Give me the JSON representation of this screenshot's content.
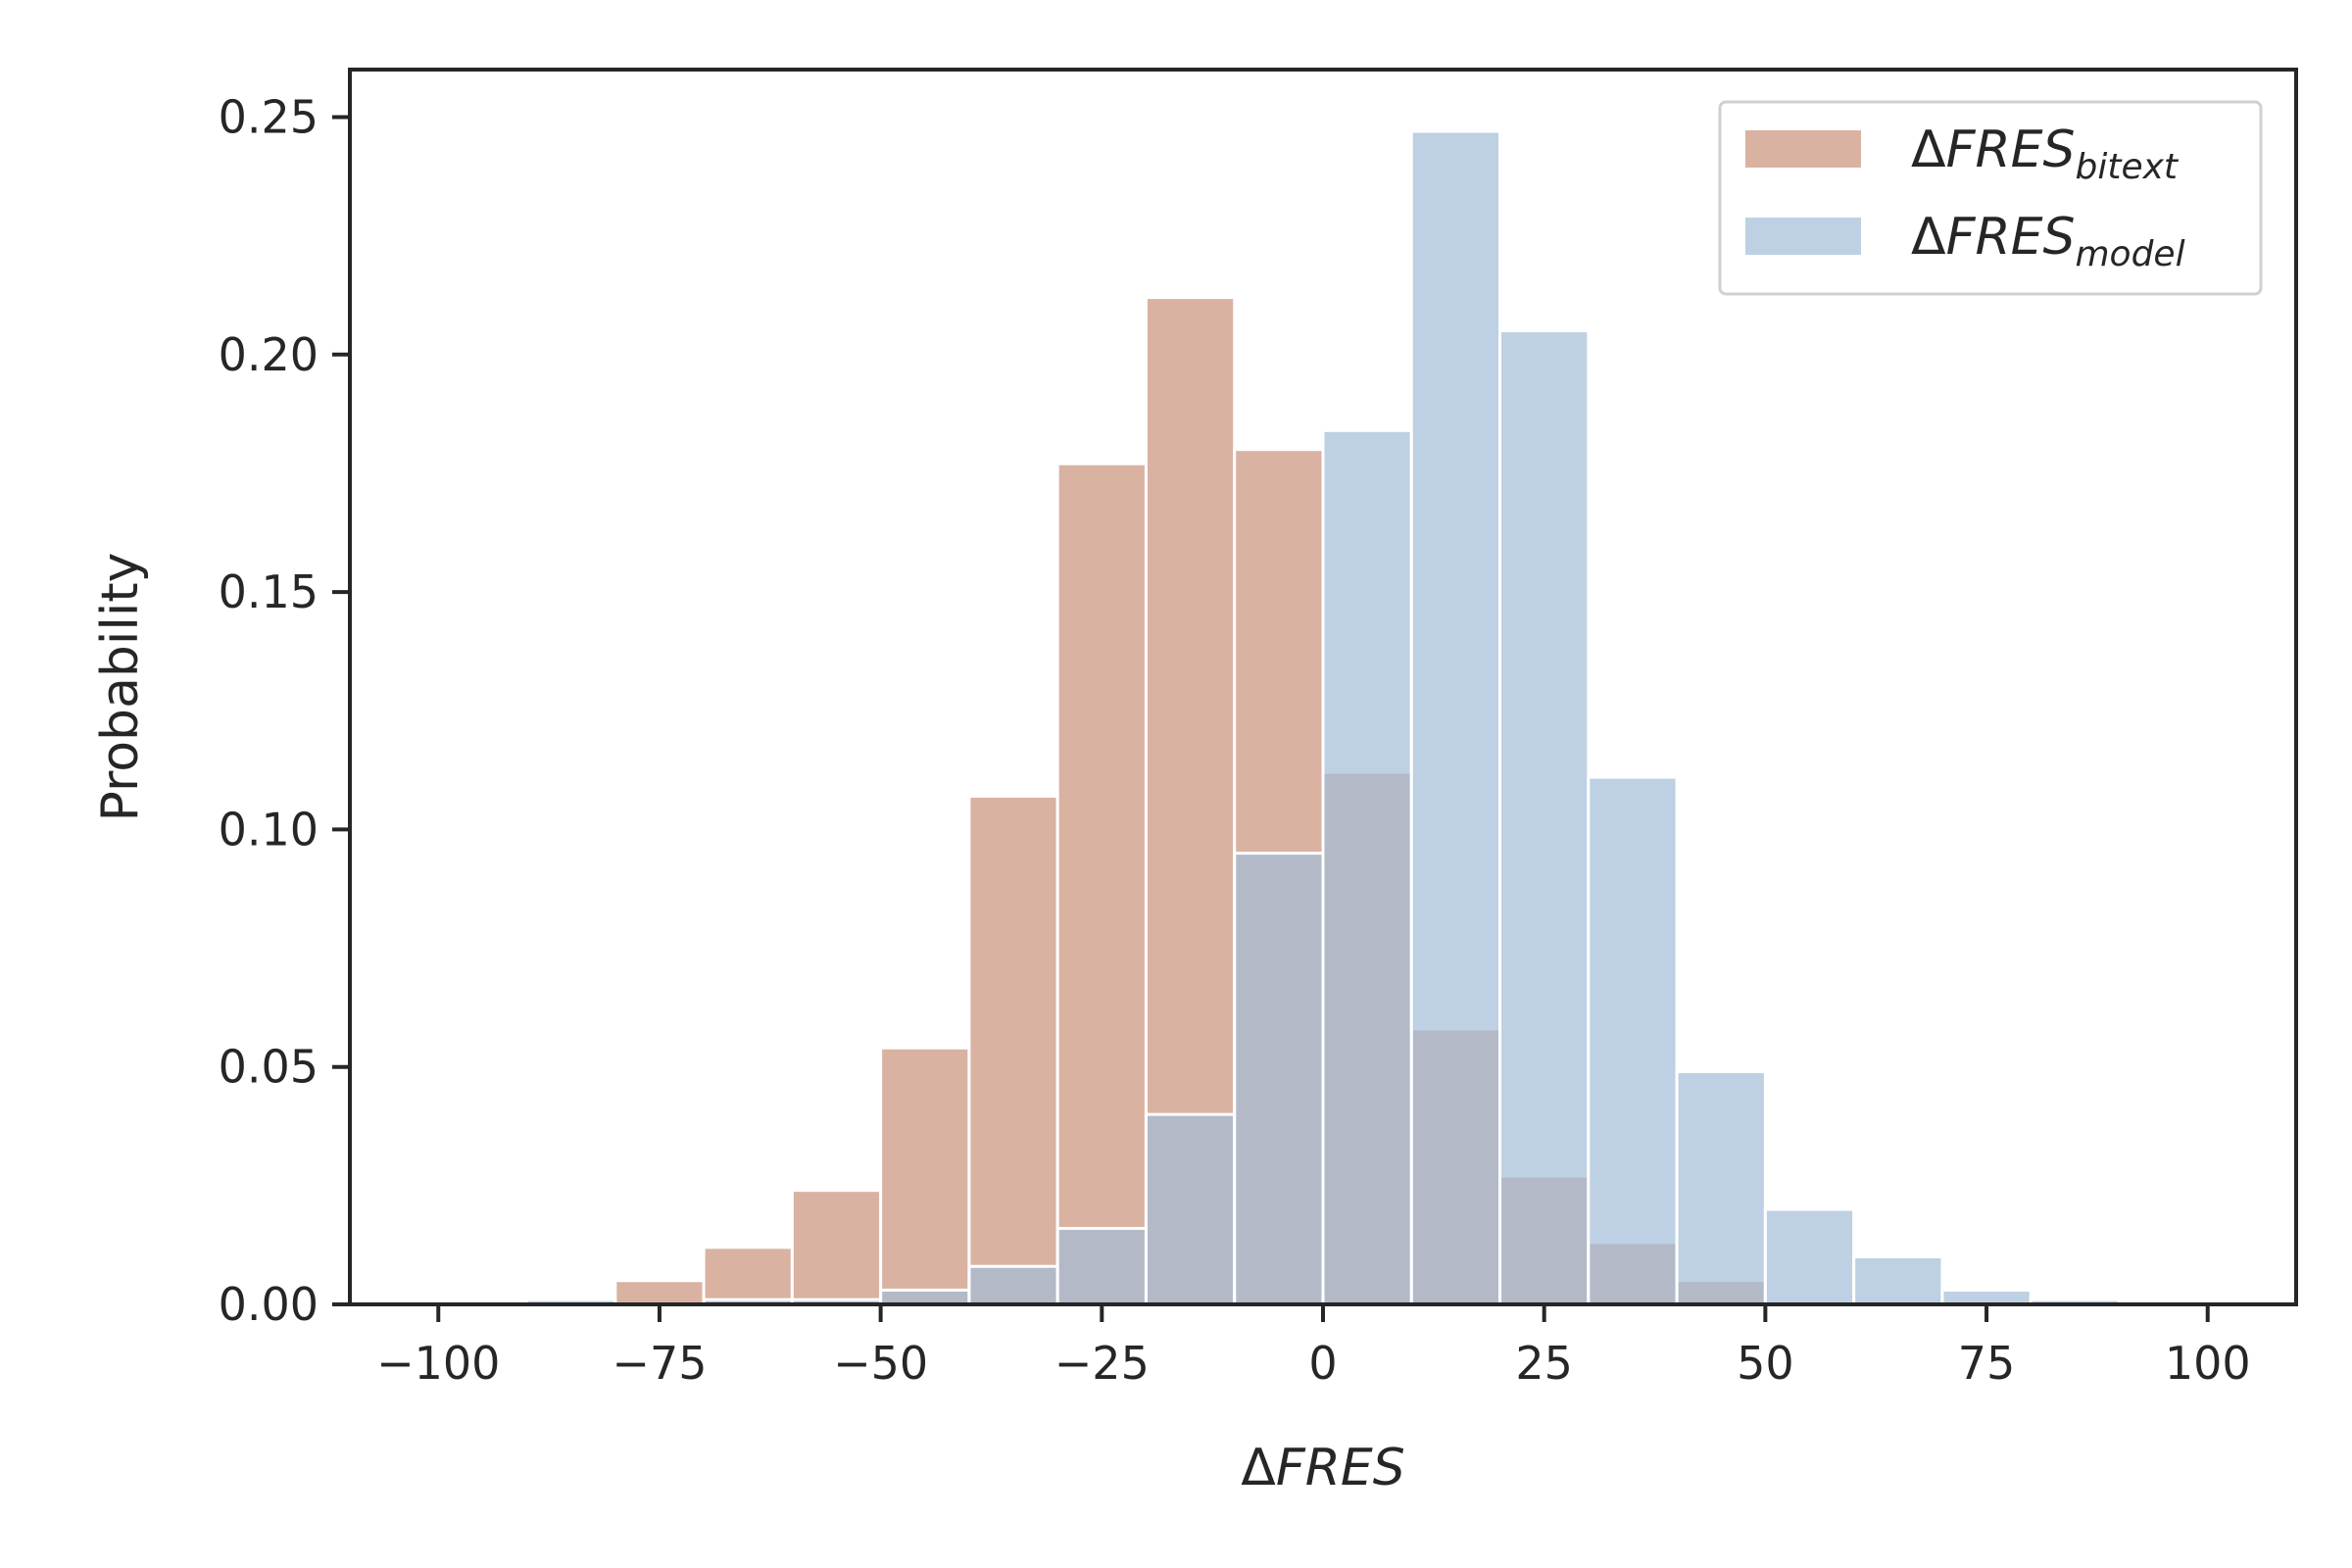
{
  "chart_data": {
    "type": "bar",
    "subtype": "overlapping-histogram",
    "title": "",
    "xlabel": {
      "prefix": "Δ",
      "italic": "FRES"
    },
    "ylabel": "Probability",
    "xlim": [
      -110,
      110
    ],
    "ylim": [
      0,
      0.26
    ],
    "bin_width": 10,
    "x_ticks": [
      -100,
      -75,
      -50,
      -25,
      0,
      25,
      50,
      75,
      100
    ],
    "x_tick_labels": [
      "−100",
      "−75",
      "−50",
      "−25",
      "0",
      "25",
      "50",
      "75",
      "100"
    ],
    "y_ticks": [
      0.0,
      0.05,
      0.1,
      0.15,
      0.2,
      0.25
    ],
    "y_tick_labels": [
      "0.00",
      "0.05",
      "0.10",
      "0.15",
      "0.20",
      "0.25"
    ],
    "grid": false,
    "legend_position": "top-right",
    "series": [
      {
        "name": "ΔFRES_bitext",
        "legend": {
          "prefix": "Δ",
          "italic": "FRES",
          "sub": "bitext"
        },
        "color": "#c9917a",
        "opacity": 0.7,
        "bin_starts": [
          -100,
          -90,
          -80,
          -70,
          -60,
          -50,
          -40,
          -30,
          -20,
          -10,
          0,
          10,
          20,
          30,
          40,
          50,
          60,
          70,
          80,
          90
        ],
        "values": [
          0.0,
          0.0,
          0.005,
          0.012,
          0.024,
          0.054,
          0.107,
          0.177,
          0.212,
          0.18,
          0.112,
          0.058,
          0.027,
          0.013,
          0.005,
          0.0,
          0.0,
          0.0,
          0.0,
          0.0
        ]
      },
      {
        "name": "ΔFRES_model",
        "legend": {
          "prefix": "Δ",
          "italic": "FRES",
          "sub": "model"
        },
        "color": "#a3bcd7",
        "opacity": 0.7,
        "bin_starts": [
          -100,
          -90,
          -80,
          -70,
          -60,
          -50,
          -40,
          -30,
          -20,
          -10,
          0,
          10,
          20,
          30,
          40,
          50,
          60,
          70,
          80,
          90
        ],
        "values": [
          0.0,
          0.001,
          0.0,
          0.001,
          0.001,
          0.003,
          0.008,
          0.016,
          0.04,
          0.095,
          0.184,
          0.247,
          0.205,
          0.111,
          0.049,
          0.02,
          0.01,
          0.003,
          0.001,
          0.0
        ]
      }
    ]
  }
}
